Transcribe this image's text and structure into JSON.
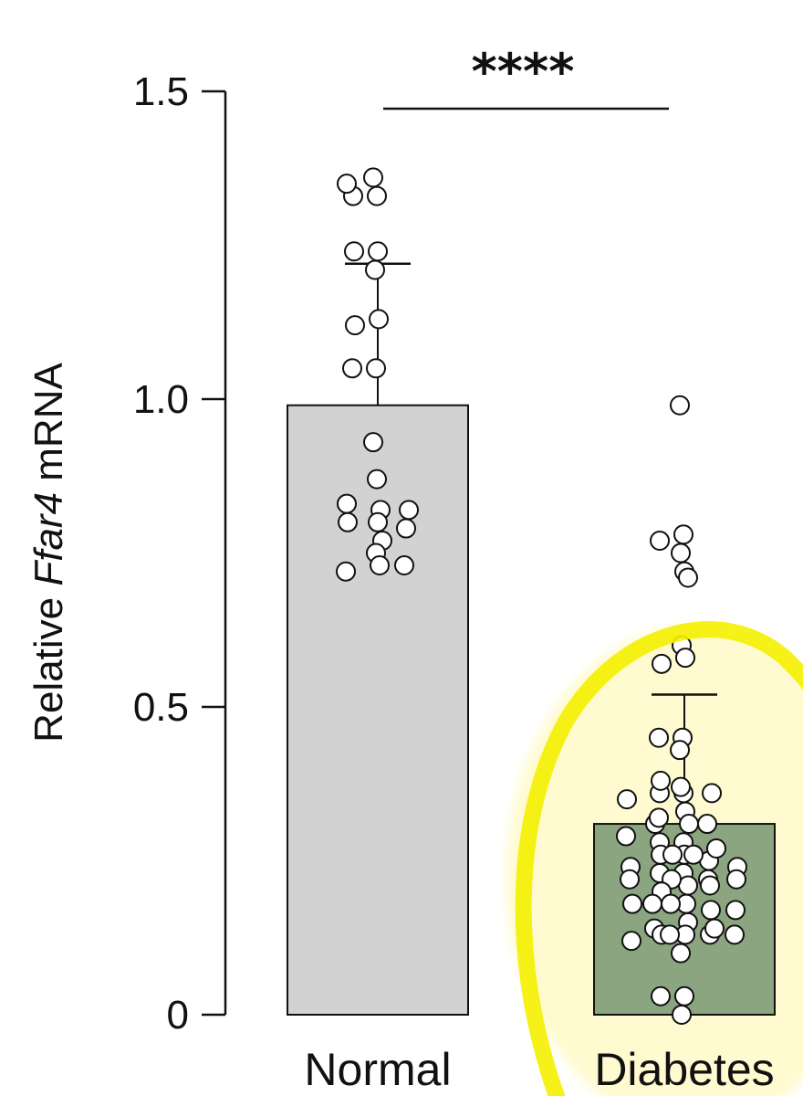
{
  "chart_data": {
    "type": "bar",
    "ylabel": {
      "prefix": "Relative ",
      "gene": "Ffar4",
      "suffix": " mRNA"
    },
    "ylim": [
      0,
      1.5
    ],
    "yticks": [
      {
        "value": 0,
        "label": "0"
      },
      {
        "value": 0.5,
        "label": "0.5"
      },
      {
        "value": 1.0,
        "label": "1.0"
      },
      {
        "value": 1.5,
        "label": "1.5"
      }
    ],
    "categories": [
      "Normal",
      "Diabetes"
    ],
    "series": [
      {
        "values": [
          0.99,
          0.31
        ],
        "error_upper": [
          1.22,
          0.52
        ],
        "bar_colors": [
          "#d2d2d2",
          "#8aa57f"
        ],
        "points": [
          [
            1.36,
            1.33,
            1.33,
            1.35,
            1.24,
            1.24,
            1.21,
            1.13,
            1.12,
            1.05,
            1.05,
            0.93,
            0.87,
            0.82,
            0.83,
            0.8,
            0.82,
            0.8,
            0.79,
            0.77,
            0.75,
            0.73,
            0.72,
            0.73
          ],
          [
            0.99,
            0.78,
            0.77,
            0.75,
            0.72,
            0.71,
            0.6,
            0.58,
            0.57,
            0.45,
            0.45,
            0.43,
            0.36,
            0.36,
            0.37,
            0.36,
            0.38,
            0.35,
            0.33,
            0.31,
            0.31,
            0.32,
            0.31,
            0.28,
            0.28,
            0.29,
            0.26,
            0.26,
            0.25,
            0.24,
            0.27,
            0.24,
            0.26,
            0.26,
            0.23,
            0.23,
            0.22,
            0.22,
            0.21,
            0.22,
            0.22,
            0.2,
            0.21,
            0.18,
            0.18,
            0.17,
            0.18,
            0.17,
            0.18,
            0.15,
            0.14,
            0.13,
            0.13,
            0.13,
            0.12,
            0.13,
            0.13,
            0.14,
            0.1,
            0.03,
            0.03,
            0.0
          ]
        ]
      }
    ],
    "significance": {
      "label": "****",
      "between": [
        "Normal",
        "Diabetes"
      ]
    },
    "highlight": {
      "shape": "ellipse",
      "color": "#f5f000",
      "target": "Diabetes"
    }
  }
}
